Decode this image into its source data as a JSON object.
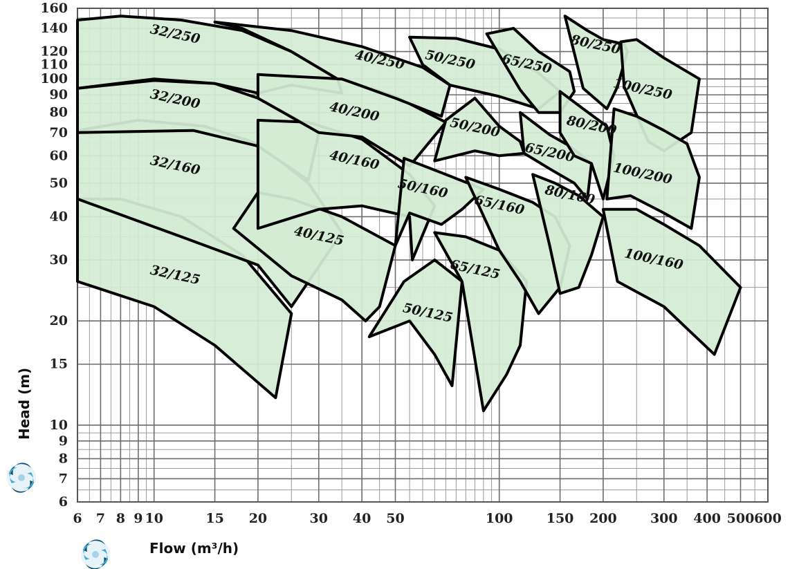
{
  "chart_data": {
    "type": "area",
    "title": "",
    "xlabel": "Flow (m³/h)",
    "ylabel": "Head (m)",
    "x_scale": "log",
    "y_scale": "log",
    "xlim": [
      6,
      600
    ],
    "ylim": [
      6,
      160
    ],
    "grid": true,
    "x_ticks": [
      6,
      7,
      8,
      9,
      10,
      15,
      20,
      30,
      40,
      50,
      100,
      150,
      200,
      300,
      400,
      500,
      600
    ],
    "x_tick_labels": [
      "6",
      "7",
      "8",
      "9",
      "10",
      "15",
      "20",
      "30",
      "40",
      "50",
      "100",
      "150",
      "200",
      "300",
      "400",
      "500",
      "600"
    ],
    "y_ticks": [
      6,
      7,
      8,
      9,
      10,
      15,
      20,
      30,
      40,
      50,
      60,
      70,
      80,
      90,
      100,
      110,
      120,
      140,
      160
    ],
    "y_tick_labels": [
      "6",
      "7",
      "8",
      "9",
      "10",
      "15",
      "20",
      "30",
      "40",
      "50",
      "60",
      "70",
      "80",
      "90",
      "100",
      "110",
      "120",
      "140",
      "160"
    ],
    "fill_color": "#d4ecd4",
    "edge_color": "#000000",
    "regions": [
      {
        "name": "32/125",
        "polygon": [
          [
            6,
            45
          ],
          [
            8,
            45
          ],
          [
            12,
            40
          ],
          [
            18,
            31
          ],
          [
            25,
            21
          ],
          [
            22.5,
            12
          ],
          [
            15,
            17
          ],
          [
            10,
            22
          ],
          [
            6,
            26
          ]
        ]
      },
      {
        "name": "32/160",
        "polygon": [
          [
            6,
            71
          ],
          [
            9,
            76
          ],
          [
            14,
            73
          ],
          [
            20,
            65
          ],
          [
            28,
            50
          ],
          [
            35,
            36
          ],
          [
            25,
            22
          ],
          [
            20,
            29
          ],
          [
            12,
            35
          ],
          [
            6,
            45
          ]
        ]
      },
      {
        "name": "32/200",
        "polygon": [
          [
            6,
            94
          ],
          [
            10,
            99
          ],
          [
            15,
            97
          ],
          [
            20,
            88
          ],
          [
            25,
            78
          ],
          [
            30,
            70
          ],
          [
            28,
            51
          ],
          [
            20,
            64
          ],
          [
            13,
            71
          ],
          [
            6,
            70
          ]
        ]
      },
      {
        "name": "32/250",
        "polygon": [
          [
            6,
            148
          ],
          [
            8,
            152
          ],
          [
            12,
            148
          ],
          [
            18,
            138
          ],
          [
            25,
            120
          ],
          [
            34,
            100
          ],
          [
            35,
            91
          ],
          [
            25,
            96
          ],
          [
            20,
            91
          ],
          [
            15,
            97
          ],
          [
            10,
            100
          ],
          [
            6,
            94
          ]
        ]
      },
      {
        "name": "40/125",
        "polygon": [
          [
            17,
            37
          ],
          [
            20,
            47
          ],
          [
            25,
            45
          ],
          [
            35,
            40
          ],
          [
            50,
            33
          ],
          [
            45,
            22
          ],
          [
            41,
            20
          ],
          [
            35,
            23
          ],
          [
            25,
            27
          ]
        ]
      },
      {
        "name": "40/160",
        "polygon": [
          [
            20,
            76
          ],
          [
            28,
            75
          ],
          [
            40,
            67
          ],
          [
            55,
            53
          ],
          [
            65,
            43
          ],
          [
            56,
            30
          ],
          [
            55,
            40
          ],
          [
            40,
            43
          ],
          [
            30,
            42
          ],
          [
            20,
            37
          ]
        ]
      },
      {
        "name": "40/200",
        "polygon": [
          [
            20,
            103
          ],
          [
            35,
            100
          ],
          [
            50,
            89
          ],
          [
            70,
            75
          ],
          [
            55,
            56
          ],
          [
            40,
            68
          ],
          [
            30,
            70
          ],
          [
            20,
            88
          ]
        ]
      },
      {
        "name": "40/250",
        "polygon": [
          [
            15,
            146
          ],
          [
            25,
            138
          ],
          [
            40,
            124
          ],
          [
            60,
            108
          ],
          [
            72,
            96
          ],
          [
            68,
            78
          ],
          [
            50,
            88
          ],
          [
            35,
            100
          ],
          [
            34,
            100
          ],
          [
            25,
            120
          ],
          [
            18,
            140
          ]
        ]
      },
      {
        "name": "50/125",
        "polygon": [
          [
            42,
            18
          ],
          [
            53,
            26
          ],
          [
            65,
            30
          ],
          [
            78,
            26
          ],
          [
            73,
            13
          ],
          [
            65,
            16
          ],
          [
            55,
            20
          ],
          [
            42,
            18
          ]
        ]
      },
      {
        "name": "50/160",
        "polygon": [
          [
            53,
            59
          ],
          [
            70,
            53
          ],
          [
            90,
            48
          ],
          [
            78,
            42
          ],
          [
            68,
            38
          ],
          [
            55,
            41
          ],
          [
            50,
            33
          ]
        ]
      },
      {
        "name": "50/200",
        "polygon": [
          [
            70,
            76
          ],
          [
            85,
            88
          ],
          [
            100,
            73
          ],
          [
            115,
            66
          ],
          [
            118,
            61
          ],
          [
            100,
            60
          ],
          [
            85,
            62
          ],
          [
            65,
            58
          ]
        ]
      },
      {
        "name": "50/250",
        "polygon": [
          [
            55,
            132
          ],
          [
            75,
            131
          ],
          [
            100,
            122
          ],
          [
            130,
            104
          ],
          [
            150,
            92
          ],
          [
            130,
            82
          ],
          [
            100,
            89
          ],
          [
            72,
            96
          ],
          [
            60,
            110
          ]
        ]
      },
      {
        "name": "65/125",
        "polygon": [
          [
            65,
            36
          ],
          [
            80,
            35
          ],
          [
            100,
            32
          ],
          [
            120,
            26
          ],
          [
            115,
            17
          ],
          [
            105,
            14
          ],
          [
            90,
            11
          ],
          [
            78,
            26
          ]
        ]
      },
      {
        "name": "65/160",
        "polygon": [
          [
            80,
            52
          ],
          [
            100,
            48
          ],
          [
            125,
            44
          ],
          [
            145,
            40
          ],
          [
            160,
            33
          ],
          [
            150,
            25
          ],
          [
            130,
            21
          ],
          [
            115,
            26
          ],
          [
            100,
            32
          ]
        ]
      },
      {
        "name": "65/250",
        "polygon": [
          [
            92,
            135
          ],
          [
            110,
            140
          ],
          [
            130,
            120
          ],
          [
            160,
            105
          ],
          [
            165,
            92
          ],
          [
            150,
            80
          ],
          [
            130,
            80
          ],
          [
            115,
            93
          ]
        ]
      },
      {
        "name": "65/200",
        "polygon": [
          [
            115,
            80
          ],
          [
            140,
            69
          ],
          [
            160,
            64
          ],
          [
            185,
            57
          ],
          [
            180,
            45
          ],
          [
            165,
            50
          ],
          [
            140,
            55
          ],
          [
            118,
            61
          ]
        ]
      },
      {
        "name": "80/160",
        "polygon": [
          [
            125,
            53
          ],
          [
            145,
            50
          ],
          [
            170,
            46
          ],
          [
            200,
            40
          ],
          [
            185,
            31
          ],
          [
            170,
            25
          ],
          [
            150,
            24
          ],
          [
            140,
            33
          ]
        ]
      },
      {
        "name": "80/200",
        "polygon": [
          [
            150,
            92
          ],
          [
            175,
            82
          ],
          [
            205,
            73
          ],
          [
            215,
            60
          ],
          [
            200,
            45
          ],
          [
            185,
            57
          ],
          [
            165,
            60
          ],
          [
            150,
            70
          ]
        ]
      },
      {
        "name": "80/250",
        "polygon": [
          [
            155,
            152
          ],
          [
            180,
            138
          ],
          [
            200,
            130
          ],
          [
            230,
            126
          ],
          [
            235,
            120
          ],
          [
            220,
            95
          ],
          [
            205,
            82
          ],
          [
            175,
            94
          ]
        ]
      },
      {
        "name": "100/250",
        "polygon": [
          [
            225,
            128
          ],
          [
            250,
            130
          ],
          [
            300,
            115
          ],
          [
            380,
            100
          ],
          [
            360,
            70
          ],
          [
            300,
            62
          ],
          [
            270,
            66
          ],
          [
            230,
            95
          ]
        ]
      },
      {
        "name": "100/200",
        "polygon": [
          [
            215,
            82
          ],
          [
            250,
            78
          ],
          [
            300,
            71
          ],
          [
            350,
            65
          ],
          [
            380,
            52
          ],
          [
            360,
            37
          ],
          [
            300,
            41
          ],
          [
            240,
            46
          ],
          [
            205,
            45
          ]
        ]
      },
      {
        "name": "100/160",
        "polygon": [
          [
            200,
            42
          ],
          [
            250,
            42
          ],
          [
            300,
            38
          ],
          [
            380,
            33
          ],
          [
            500,
            25
          ],
          [
            420,
            16
          ],
          [
            350,
            19
          ],
          [
            300,
            22
          ],
          [
            220,
            26
          ]
        ]
      }
    ],
    "region_labels": [
      {
        "text": "32/250",
        "x": 11.5,
        "y": 134
      },
      {
        "text": "32/200",
        "x": 11.5,
        "y": 87
      },
      {
        "text": "32/160",
        "x": 11.5,
        "y": 56
      },
      {
        "text": "32/125",
        "x": 11.5,
        "y": 27
      },
      {
        "text": "40/250",
        "x": 45,
        "y": 113
      },
      {
        "text": "40/200",
        "x": 38,
        "y": 80
      },
      {
        "text": "40/160",
        "x": 38,
        "y": 58
      },
      {
        "text": "40/125",
        "x": 30,
        "y": 35
      },
      {
        "text": "50/250",
        "x": 72,
        "y": 113
      },
      {
        "text": "50/200",
        "x": 85,
        "y": 72
      },
      {
        "text": "50/160",
        "x": 60,
        "y": 48
      },
      {
        "text": "50/125",
        "x": 62,
        "y": 21
      },
      {
        "text": "65/250",
        "x": 120,
        "y": 110
      },
      {
        "text": "65/200",
        "x": 140,
        "y": 61
      },
      {
        "text": "65/160",
        "x": 100,
        "y": 43
      },
      {
        "text": "65/125",
        "x": 85,
        "y": 28
      },
      {
        "text": "80/250",
        "x": 190,
        "y": 125
      },
      {
        "text": "80/200",
        "x": 185,
        "y": 73
      },
      {
        "text": "80/160",
        "x": 160,
        "y": 46
      },
      {
        "text": "100/250",
        "x": 260,
        "y": 93
      },
      {
        "text": "100/200",
        "x": 260,
        "y": 53
      },
      {
        "text": "100/160",
        "x": 280,
        "y": 30
      }
    ]
  },
  "logo": {
    "icon": "swirl-logo-icon",
    "colors": [
      "#0b4f6c",
      "#45a9d8",
      "#a7d3e9"
    ]
  }
}
